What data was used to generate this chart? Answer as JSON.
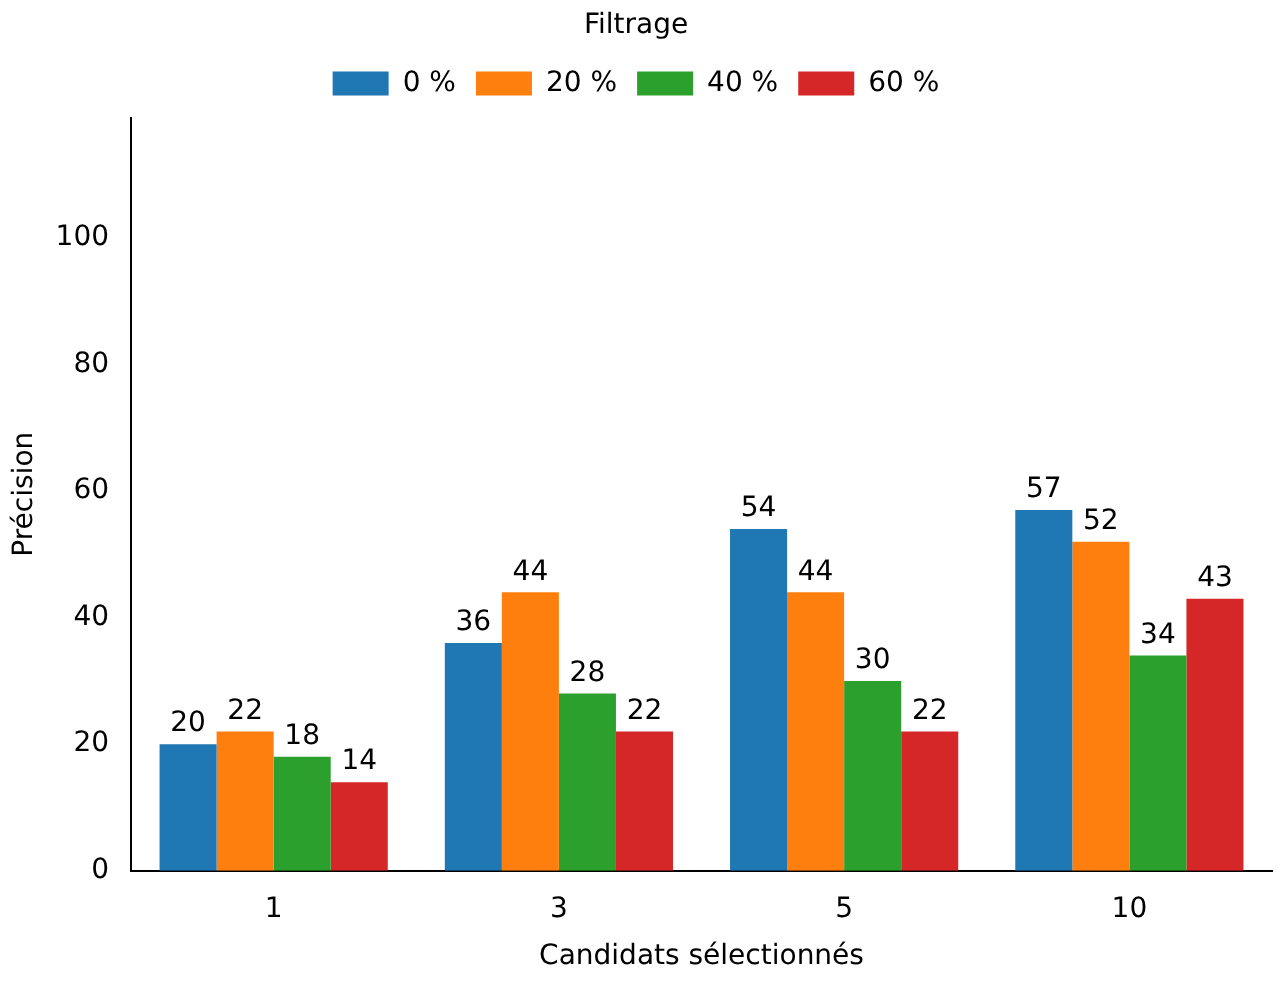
{
  "chart_data": {
    "type": "bar",
    "xlabel": "Candidats sélectionnés",
    "ylabel": "Précision",
    "legend_title": "Filtrage",
    "categories": [
      "1",
      "3",
      "5",
      "10"
    ],
    "series": [
      {
        "name": "0 %",
        "color": "#1f77b4",
        "values": [
          20,
          36,
          54,
          57
        ]
      },
      {
        "name": "20 %",
        "color": "#ff7f0e",
        "values": [
          22,
          44,
          44,
          52
        ]
      },
      {
        "name": "40 %",
        "color": "#2ca02c",
        "values": [
          18,
          28,
          30,
          34
        ]
      },
      {
        "name": "60 %",
        "color": "#d62728",
        "values": [
          14,
          22,
          22,
          43
        ]
      }
    ],
    "ylim": [
      0,
      119
    ],
    "yticks": [
      0,
      20,
      40,
      60,
      80,
      100
    ],
    "grid": false,
    "legend": "top",
    "data_labels": true
  }
}
